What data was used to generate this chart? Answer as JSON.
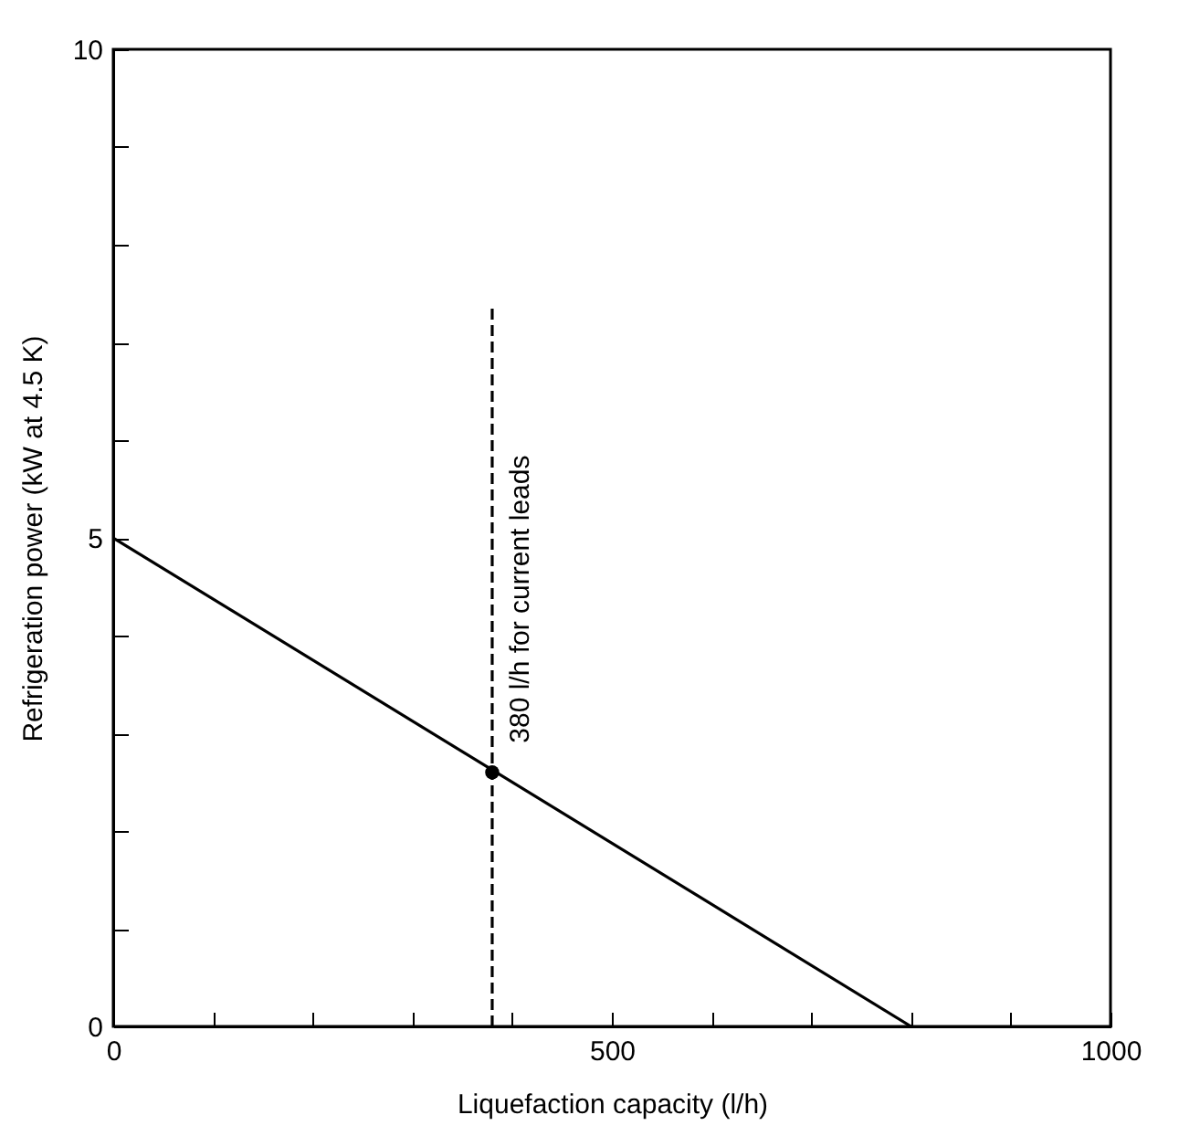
{
  "chart_data": {
    "type": "line",
    "xlabel": "Liquefaction capacity (l/h)",
    "ylabel": "Refrigeration power (kW at 4.5 K)",
    "xlim": [
      0,
      1000
    ],
    "ylim": [
      0,
      10
    ],
    "xticks": [
      0,
      {
        "value": 100,
        "label": null
      },
      {
        "value": 200,
        "label": null
      },
      {
        "value": 300,
        "label": null
      },
      {
        "value": 400,
        "label": null
      },
      500,
      {
        "value": 600,
        "label": null
      },
      {
        "value": 700,
        "label": null
      },
      {
        "value": 800,
        "label": null
      },
      {
        "value": 900,
        "label": null
      },
      1000
    ],
    "yticks": [
      0,
      {
        "value": 1,
        "label": null
      },
      {
        "value": 2,
        "label": null
      },
      {
        "value": 3,
        "label": null
      },
      {
        "value": 4,
        "label": null
      },
      5,
      {
        "value": 6,
        "label": null
      },
      {
        "value": 7,
        "label": null
      },
      {
        "value": 8,
        "label": null
      },
      {
        "value": 9,
        "label": null
      },
      10
    ],
    "series": [
      {
        "color": "#000000",
        "x": [
          0,
          800
        ],
        "values": [
          5,
          0
        ],
        "line_style": "solid"
      },
      {
        "type": "line",
        "color": "#000000",
        "x": [
          380,
          380
        ],
        "values": [
          0,
          7.4
        ],
        "line_style": "dashed"
      },
      {
        "type": "scatter",
        "color": "#000000",
        "x": [
          380
        ],
        "values": [
          2.6
        ],
        "marker": "circle"
      }
    ],
    "annotations": [
      {
        "text": "380 l/h for current leads",
        "x": 380,
        "y": 2.9
      }
    ],
    "grid": false
  }
}
